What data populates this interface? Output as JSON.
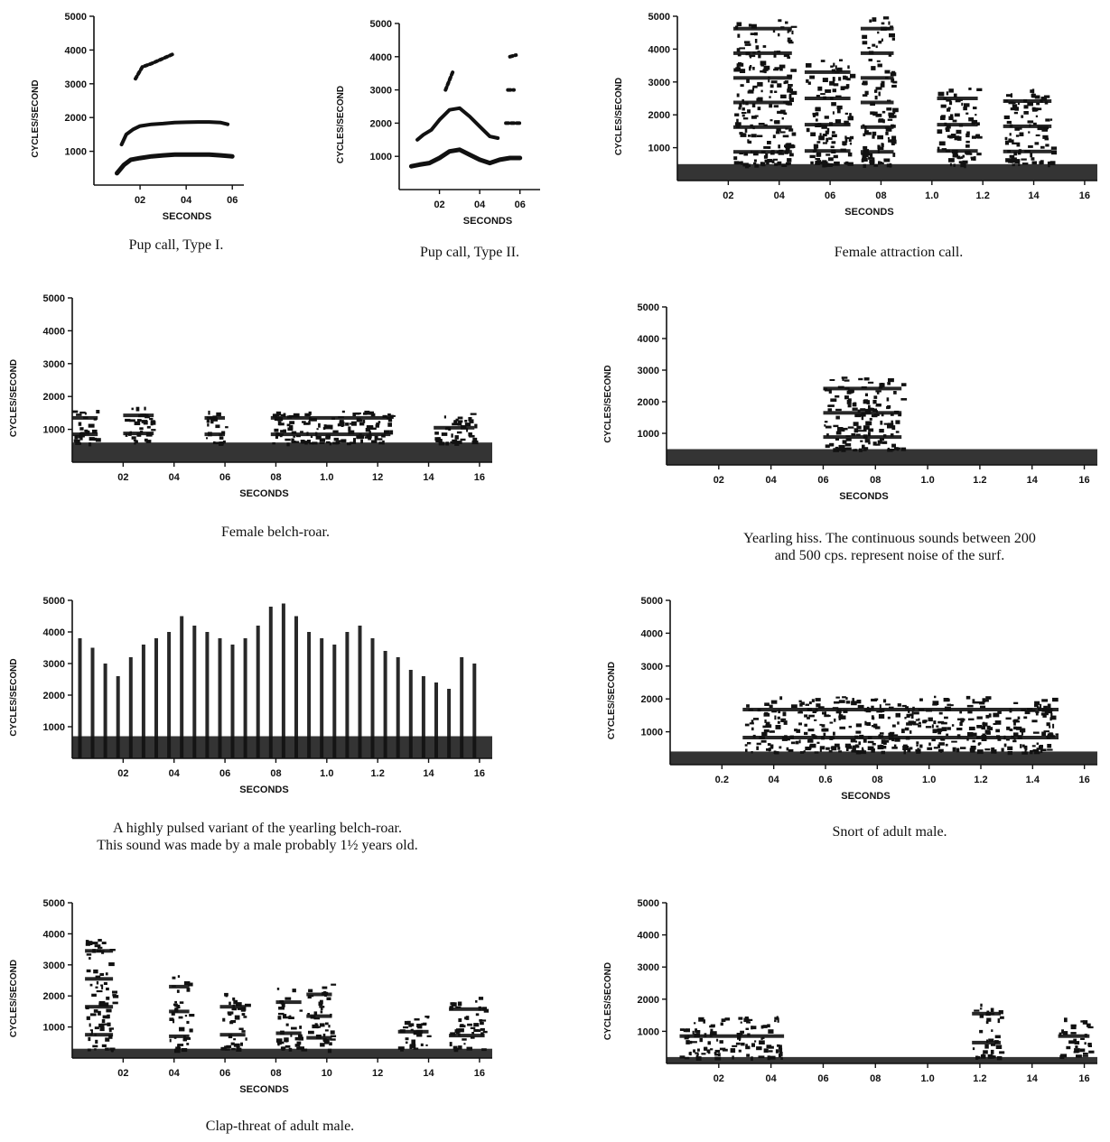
{
  "figure": {
    "y_axis_label": "CYCLES/SECOND",
    "x_axis_label": "SECONDS"
  },
  "chart_data": [
    {
      "type": "scatter",
      "caption": "Pup call, Type I.",
      "xlabel": "SECONDS",
      "ylabel": "CYCLES/SECOND",
      "xlim": [
        0,
        0.65
      ],
      "ylim": [
        0,
        5000
      ],
      "xticks": [
        "02",
        "04",
        "06"
      ],
      "xtick_values": [
        0.2,
        0.4,
        0.6
      ],
      "yticks": [
        "1000",
        "2000",
        "3000",
        "4000",
        "5000"
      ],
      "ytick_values": [
        1000,
        2000,
        3000,
        4000,
        5000
      ],
      "series": [
        {
          "x": [
            0.1,
            0.13,
            0.16,
            0.2,
            0.25,
            0.3,
            0.35,
            0.4,
            0.45,
            0.5,
            0.55,
            0.6
          ],
          "y": [
            350,
            600,
            750,
            800,
            850,
            880,
            900,
            900,
            900,
            900,
            880,
            850
          ]
        },
        {
          "x": [
            0.12,
            0.14,
            0.17,
            0.2,
            0.25,
            0.3,
            0.35,
            0.4,
            0.45,
            0.5,
            0.55,
            0.58
          ],
          "y": [
            1200,
            1500,
            1650,
            1750,
            1800,
            1820,
            1850,
            1860,
            1870,
            1870,
            1850,
            1800
          ]
        },
        {
          "x": [
            0.18,
            0.21,
            0.25,
            0.3,
            0.35
          ],
          "y": [
            3150,
            3500,
            3600,
            3750,
            3900
          ]
        }
      ]
    },
    {
      "type": "scatter",
      "caption": "Pup call, Type II.",
      "xlabel": "SECONDS",
      "ylabel": "CYCLES/SECOND",
      "xlim": [
        0,
        0.7
      ],
      "ylim": [
        0,
        5000
      ],
      "xticks": [
        "02",
        "04",
        "06"
      ],
      "xtick_values": [
        0.2,
        0.4,
        0.6
      ],
      "yticks": [
        "1000",
        "2000",
        "3000",
        "4000",
        "5000"
      ],
      "ytick_values": [
        1000,
        2000,
        3000,
        4000,
        5000
      ],
      "series": [
        {
          "x": [
            0.06,
            0.1,
            0.15,
            0.2,
            0.25,
            0.3,
            0.35,
            0.4,
            0.45,
            0.5,
            0.55,
            0.6
          ],
          "y": [
            700,
            750,
            800,
            950,
            1150,
            1200,
            1050,
            900,
            800,
            900,
            950,
            950
          ]
        },
        {
          "x": [
            0.09,
            0.12,
            0.16,
            0.2,
            0.25,
            0.3,
            0.35,
            0.4,
            0.45,
            0.49
          ],
          "y": [
            1500,
            1650,
            1800,
            2100,
            2400,
            2450,
            2200,
            1900,
            1600,
            1550
          ]
        },
        {
          "x": [
            0.23,
            0.25,
            0.27
          ],
          "y": [
            3000,
            3300,
            3600
          ]
        },
        {
          "x": [
            0.53,
            0.56,
            0.6
          ],
          "y": [
            2000,
            2000,
            2000
          ]
        },
        {
          "x": [
            0.54,
            0.57
          ],
          "y": [
            3000,
            3000
          ]
        },
        {
          "x": [
            0.55,
            0.58
          ],
          "y": [
            4000,
            4050
          ]
        }
      ]
    },
    {
      "type": "heatmap",
      "caption": "Female attraction call.",
      "xlabel": "SECONDS",
      "ylabel": "CYCLES/SECOND",
      "xlim": [
        0,
        1.65
      ],
      "ylim": [
        0,
        5000
      ],
      "xticks": [
        "02",
        "04",
        "06",
        "08",
        "1.0",
        "1.2",
        "14",
        "16"
      ],
      "xtick_values": [
        0.2,
        0.4,
        0.6,
        0.8,
        1.0,
        1.2,
        1.4,
        1.6
      ],
      "yticks": [
        "1000",
        "2000",
        "3000",
        "4000",
        "5000"
      ],
      "ytick_values": [
        1000,
        2000,
        3000,
        4000,
        5000
      ],
      "bursts": [
        {
          "start": 0.22,
          "end": 0.45,
          "max_freq": 5000
        },
        {
          "start": 0.5,
          "end": 0.68,
          "max_freq": 3700
        },
        {
          "start": 0.72,
          "end": 0.85,
          "max_freq": 5000
        },
        {
          "start": 1.02,
          "end": 1.18,
          "max_freq": 2900
        },
        {
          "start": 1.28,
          "end": 1.47,
          "max_freq": 2800
        }
      ],
      "noise_floor": 500
    },
    {
      "type": "heatmap",
      "caption": "Female belch-roar.",
      "xlabel": "SECONDS",
      "ylabel": "CYCLES/SECOND",
      "xlim": [
        0,
        1.65
      ],
      "ylim": [
        0,
        5000
      ],
      "xticks": [
        "02",
        "04",
        "06",
        "08",
        "1.0",
        "12",
        "14",
        "16"
      ],
      "xtick_values": [
        0.2,
        0.4,
        0.6,
        0.8,
        1.0,
        1.2,
        1.4,
        1.6
      ],
      "yticks": [
        "1000",
        "2000",
        "3000",
        "4000",
        "5000"
      ],
      "ytick_values": [
        1000,
        2000,
        3000,
        4000,
        5000
      ],
      "bursts": [
        {
          "start": 0.0,
          "end": 0.1,
          "max_freq": 1600
        },
        {
          "start": 0.2,
          "end": 0.32,
          "max_freq": 1700
        },
        {
          "start": 0.52,
          "end": 0.6,
          "max_freq": 1600
        },
        {
          "start": 0.78,
          "end": 1.25,
          "max_freq": 1600
        },
        {
          "start": 1.42,
          "end": 1.58,
          "max_freq": 1500
        }
      ],
      "noise_floor": 600
    },
    {
      "type": "heatmap",
      "caption": "Yearling hiss. The continuous sounds between 200 and 500 cps. represent noise of the surf.",
      "caption_lines": [
        "Yearling hiss. The continuous sounds between 200",
        "and 500 cps. represent noise of the surf."
      ],
      "xlabel": "SECONDS",
      "ylabel": "CYCLES/SECOND",
      "xlim": [
        0,
        1.65
      ],
      "ylim": [
        0,
        5000
      ],
      "xticks": [
        "02",
        "04",
        "06",
        "08",
        "1.0",
        "1.2",
        "14",
        "16"
      ],
      "xtick_values": [
        0.2,
        0.4,
        0.6,
        0.8,
        1.0,
        1.2,
        1.4,
        1.6
      ],
      "yticks": [
        "1000",
        "2000",
        "3000",
        "4000",
        "5000"
      ],
      "ytick_values": [
        1000,
        2000,
        3000,
        4000,
        5000
      ],
      "bursts": [
        {
          "start": 0.6,
          "end": 0.9,
          "max_freq": 2800
        }
      ],
      "noise_floor": 500
    },
    {
      "type": "heatmap",
      "caption": "A highly pulsed variant of the yearling belch-roar. This sound was made by a male probably 1½ years old.",
      "caption_lines": [
        "A highly pulsed variant of the yearling belch-roar.",
        "This sound was made by a male probably 1½ years old."
      ],
      "xlabel": "SECONDS",
      "ylabel": "CYCLES/SECOND",
      "xlim": [
        0,
        1.65
      ],
      "ylim": [
        0,
        5000
      ],
      "xticks": [
        "02",
        "04",
        "06",
        "08",
        "1.0",
        "1.2",
        "14",
        "16"
      ],
      "xtick_values": [
        0.2,
        0.4,
        0.6,
        0.8,
        1.0,
        1.2,
        1.4,
        1.6
      ],
      "yticks": [
        "1000",
        "2000",
        "3000",
        "4000",
        "5000"
      ],
      "ytick_values": [
        1000,
        2000,
        3000,
        4000,
        5000
      ],
      "pulse_start": 0.03,
      "pulse_end": 1.6,
      "pulse_interval": 0.05,
      "pulse_max_freq": [
        3800,
        3500,
        3000,
        2600,
        3200,
        3600,
        3800,
        4000,
        4500,
        4200,
        4000,
        3800,
        3600,
        3800,
        4200,
        4800,
        4900,
        4500,
        4000,
        3800,
        3600,
        4000,
        4200,
        3800,
        3400,
        3200,
        2800,
        2600,
        2400,
        2200,
        3200,
        3000
      ],
      "noise_floor": 700
    },
    {
      "type": "heatmap",
      "caption": "Snort of adult male.",
      "xlabel": "SECONDS",
      "ylabel": "CYCLES/SECOND",
      "xlim": [
        0,
        1.65
      ],
      "ylim": [
        0,
        5000
      ],
      "xticks": [
        "0.2",
        "04",
        "0.6",
        "08",
        "1.0",
        "1.2",
        "1.4",
        "16"
      ],
      "xtick_values": [
        0.2,
        0.4,
        0.6,
        0.8,
        1.0,
        1.2,
        1.4,
        1.6
      ],
      "yticks": [
        "1000",
        "2000",
        "3000",
        "4000",
        "5000"
      ],
      "ytick_values": [
        1000,
        2000,
        3000,
        4000,
        5000
      ],
      "bursts": [
        {
          "start": 0.28,
          "end": 1.5,
          "max_freq": 2100
        }
      ],
      "noise_floor": 400
    },
    {
      "type": "heatmap",
      "caption": "Clap-threat of adult male.",
      "xlabel": "SECONDS",
      "ylabel": "CYCLES/SECOND",
      "xlim": [
        0,
        1.65
      ],
      "ylim": [
        0,
        5000
      ],
      "xticks": [
        "02",
        "04",
        "06",
        "08",
        "10",
        "12",
        "14",
        "16"
      ],
      "xtick_values": [
        0.2,
        0.4,
        0.6,
        0.8,
        1.0,
        1.2,
        1.4,
        1.6
      ],
      "yticks": [
        "1000",
        "2000",
        "3000",
        "4000",
        "5000"
      ],
      "ytick_values": [
        1000,
        2000,
        3000,
        4000,
        5000
      ],
      "bursts": [
        {
          "start": 0.05,
          "end": 0.16,
          "max_freq": 3900
        },
        {
          "start": 0.38,
          "end": 0.46,
          "max_freq": 2700
        },
        {
          "start": 0.58,
          "end": 0.68,
          "max_freq": 2100
        },
        {
          "start": 0.8,
          "end": 0.9,
          "max_freq": 2300
        },
        {
          "start": 0.92,
          "end": 1.02,
          "max_freq": 2400
        },
        {
          "start": 1.28,
          "end": 1.4,
          "max_freq": 1400
        },
        {
          "start": 1.48,
          "end": 1.62,
          "max_freq": 2000
        }
      ],
      "noise_floor": 300
    },
    {
      "type": "heatmap",
      "caption": "",
      "xlabel": "",
      "ylabel": "CYCLES/SECOND",
      "xlim": [
        0,
        1.65
      ],
      "ylim": [
        0,
        5000
      ],
      "xticks": [
        "02",
        "04",
        "06",
        "08",
        "1.0",
        "1.2",
        "14",
        "16"
      ],
      "xtick_values": [
        0.2,
        0.4,
        0.6,
        0.8,
        1.0,
        1.2,
        1.4,
        1.6
      ],
      "yticks": [
        "1000",
        "2000",
        "3000",
        "4000",
        "5000"
      ],
      "ytick_values": [
        1000,
        2000,
        3000,
        4000,
        5000
      ],
      "bursts": [
        {
          "start": 0.05,
          "end": 0.45,
          "max_freq": 1500
        },
        {
          "start": 1.17,
          "end": 1.28,
          "max_freq": 2000
        },
        {
          "start": 1.5,
          "end": 1.62,
          "max_freq": 1500
        }
      ],
      "noise_floor": 200
    }
  ]
}
